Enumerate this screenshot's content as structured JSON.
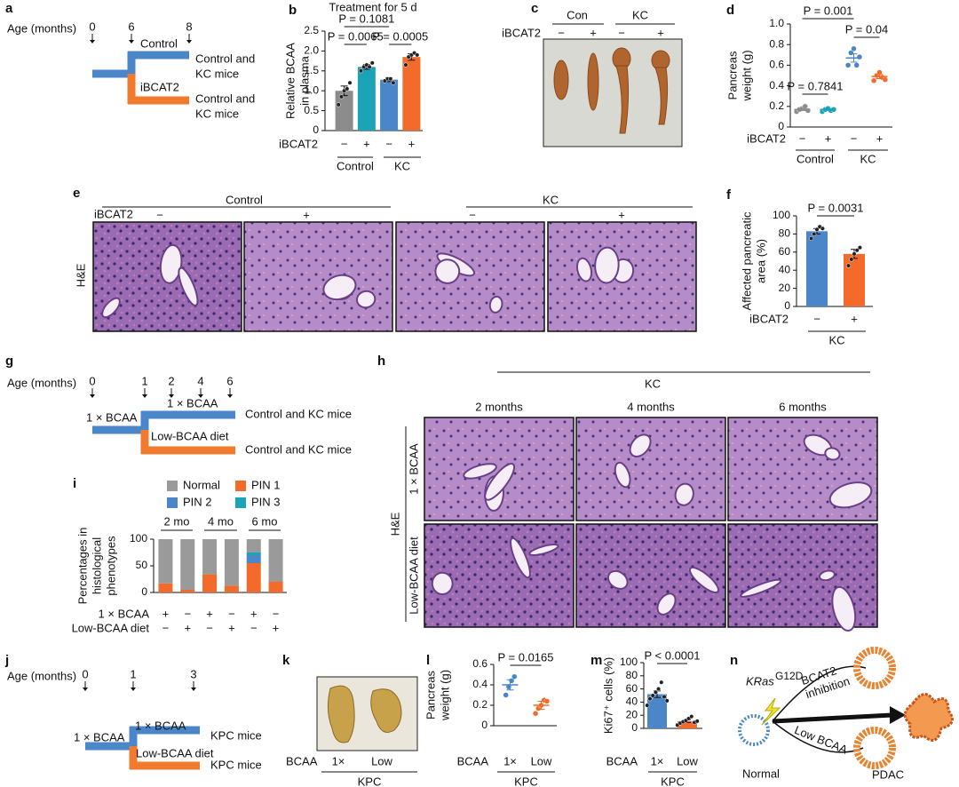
{
  "panel_labels": [
    "a",
    "b",
    "c",
    "d",
    "e",
    "f",
    "g",
    "h",
    "i",
    "j",
    "k",
    "l",
    "m",
    "n"
  ],
  "a": {
    "age_label": "Age (months)",
    "ages": [
      "0",
      "6",
      "8"
    ],
    "arms": [
      {
        "name": "Control",
        "outcome": [
          "Control and",
          "KC mice"
        ]
      },
      {
        "name": "iBCAT2",
        "outcome": [
          "Control and",
          "KC mice"
        ]
      }
    ]
  },
  "c": {
    "columns": [
      "Con",
      "KC"
    ],
    "factor": "iBCAT2",
    "signs": [
      "−",
      "+",
      "−",
      "+"
    ]
  },
  "e": {
    "groups": [
      "Control",
      "KC"
    ],
    "factor": "iBCAT2",
    "signs": [
      "−",
      "+",
      "−",
      "+"
    ],
    "stain": "H&E"
  },
  "g": {
    "age_label": "Age (months)",
    "ages": [
      "0",
      "1",
      "2",
      "4",
      "6"
    ],
    "start": "1 × BCAA",
    "arms": [
      {
        "name": "1 × BCAA",
        "outcome": [
          "Control and KC mice"
        ]
      },
      {
        "name": "Low-BCAA diet",
        "outcome": [
          "Control and KC mice"
        ]
      }
    ]
  },
  "h": {
    "group": "KC",
    "columns": [
      "2 months",
      "4 months",
      "6 months"
    ],
    "rows": [
      "1 × BCAA",
      "Low-BCAA diet"
    ],
    "stain": "H&E"
  },
  "j": {
    "age_label": "Age (months)",
    "ages": [
      "0",
      "1",
      "3"
    ],
    "start": "1 × BCAA",
    "arms": [
      {
        "name": "1 × BCAA",
        "outcome": [
          "KPC mice"
        ]
      },
      {
        "name": "Low-BCAA diet",
        "outcome": [
          "KPC mice"
        ]
      }
    ]
  },
  "k": {
    "factor": "BCAA",
    "levels": [
      "1×",
      "Low"
    ],
    "group": "KPC"
  },
  "n": {
    "gene": "KRas",
    "superscript": "G12D",
    "upper_arrow": [
      "BCAT2",
      "inhibition"
    ],
    "lower_arrow": "Low BCAA",
    "start": "Normal",
    "end": "PDAC"
  },
  "chart_data": [
    {
      "type": "bar",
      "title": "Treatment for 5 d",
      "ylabel": [
        "Relative BCAA",
        "in plasma"
      ],
      "factor": "iBCAT2",
      "categories": [
        "−",
        "+",
        "−",
        "+"
      ],
      "groups": [
        "Control",
        "KC"
      ],
      "values": [
        1.0,
        1.6,
        1.28,
        1.85
      ],
      "errors": [
        0.12,
        0.06,
        0.05,
        0.08
      ],
      "points": [
        [
          0.65,
          0.85,
          1.0,
          1.05,
          1.2
        ],
        [
          1.5,
          1.6,
          1.65,
          1.6,
          1.7
        ],
        [
          1.25,
          1.3,
          1.3,
          1.2
        ],
        [
          1.65,
          1.85,
          1.9,
          1.95,
          1.9
        ]
      ],
      "colors": [
        "#8c8c8c",
        "#1ba3b8",
        "#4a86c8",
        "#f26b2a"
      ],
      "annotations": [
        "P = 0.1081",
        "P = 0.0065",
        "P = 0.0005"
      ],
      "ylim": [
        0,
        2.5
      ],
      "yticks": [
        0,
        0.5,
        {
          "value": 1,
          "label": "1.0"
        },
        1.5,
        {
          "value": 2,
          "label": "2.0"
        },
        2.5
      ]
    },
    {
      "type": "dot",
      "ylabel": [
        "Pancreas",
        "weight (g)"
      ],
      "factor": "iBCAT2",
      "categories": [
        "−",
        "+",
        "−",
        "+"
      ],
      "groups": [
        "Control",
        "KC"
      ],
      "values": [
        0.17,
        0.17,
        0.67,
        0.49
      ],
      "errors": [
        0.01,
        0.01,
        0.04,
        0.02
      ],
      "points": [
        [
          0.15,
          0.17,
          0.18,
          0.2,
          0.16
        ],
        [
          0.15,
          0.17,
          0.18,
          0.16,
          0.17
        ],
        [
          0.6,
          0.72,
          0.76,
          0.6,
          0.68
        ],
        [
          0.45,
          0.5,
          0.53,
          0.48,
          0.46
        ]
      ],
      "colors": [
        "#8c8c8c",
        "#1ba3b8",
        "#4a86c8",
        "#f26b2a"
      ],
      "annotations": [
        "P = 0.001",
        "P = 0.04",
        "P = 0.7841"
      ],
      "ylim": [
        0,
        1.0
      ],
      "yticks": [
        0,
        0.2,
        0.4,
        0.6,
        0.8,
        {
          "value": 1,
          "label": "1.0"
        }
      ]
    },
    {
      "type": "bar",
      "ylabel": [
        "Affected pancreatic",
        "area (%)"
      ],
      "factor": "iBCAT2",
      "categories": [
        "−",
        "+"
      ],
      "groups": [
        "KC"
      ],
      "values": [
        83,
        58
      ],
      "errors": [
        3,
        5
      ],
      "points": [
        [
          75,
          80,
          85,
          88,
          86
        ],
        [
          45,
          52,
          58,
          62,
          65
        ]
      ],
      "colors": [
        "#4a86c8",
        "#f26b2a"
      ],
      "annotations": [
        "P = 0.0031"
      ],
      "ylim": [
        0,
        100
      ],
      "yticks": [
        0,
        20,
        40,
        60,
        80,
        100
      ]
    },
    {
      "type": "stacked_bar",
      "ylabel": [
        "Percentages in",
        "histological",
        "phenotypes"
      ],
      "groups": [
        "2 mo",
        "4 mo",
        "6 mo"
      ],
      "rows": [
        {
          "name": "1 × BCAA",
          "signs": [
            "+",
            "−",
            "+",
            "−",
            "+",
            "−"
          ]
        },
        {
          "name": "Low-BCAA diet",
          "signs": [
            "−",
            "+",
            "−",
            "+",
            "−",
            "+"
          ]
        }
      ],
      "series": [
        {
          "name": "Normal",
          "color": "#9a9a9a",
          "values": [
            83,
            95,
            66,
            87,
            25,
            80
          ]
        },
        {
          "name": "PIN 1",
          "color": "#f26b2a",
          "values": [
            17,
            5,
            34,
            13,
            55,
            20
          ]
        },
        {
          "name": "PIN 2",
          "color": "#4a86c8",
          "values": [
            0,
            0,
            0,
            0,
            15,
            0
          ]
        },
        {
          "name": "PIN 3",
          "color": "#1ba3b8",
          "values": [
            0,
            0,
            0,
            0,
            5,
            0
          ]
        }
      ],
      "ylim": [
        0,
        100
      ],
      "yticks": [
        0,
        50,
        100
      ]
    },
    {
      "type": "dot",
      "ylabel": [
        "Pancreas",
        "weight (g)"
      ],
      "factor": "BCAA",
      "categories": [
        "1×",
        "Low"
      ],
      "groups": [
        "KPC"
      ],
      "values": [
        0.4,
        0.2
      ],
      "errors": [
        0.05,
        0.04
      ],
      "points": [
        [
          0.3,
          0.38,
          0.44,
          0.48
        ],
        [
          0.12,
          0.17,
          0.2,
          0.25,
          0.24
        ]
      ],
      "colors": [
        "#4a86c8",
        "#f26b2a"
      ],
      "annotations": [
        "P = 0.0165"
      ],
      "ylim": [
        0,
        0.6
      ],
      "yticks": [
        0,
        0.2,
        0.4,
        0.6
      ]
    },
    {
      "type": "bar",
      "ylabel": [
        "Ki67⁺ cells (%)"
      ],
      "factor": "BCAA",
      "categories": [
        "1×",
        "Low"
      ],
      "groups": [
        "KPC"
      ],
      "values": [
        52,
        11
      ],
      "errors": [
        5,
        2
      ],
      "points": [
        [
          35,
          45,
          50,
          55,
          60,
          70,
          48,
          42
        ],
        [
          5,
          8,
          10,
          12,
          15,
          18,
          9,
          11
        ]
      ],
      "colors": [
        "#4a86c8",
        "#f26b2a"
      ],
      "annotations": [
        "P < 0.0001"
      ],
      "ylim": [
        0,
        100
      ],
      "yticks": [
        0,
        20,
        40,
        60,
        80,
        100
      ]
    }
  ]
}
